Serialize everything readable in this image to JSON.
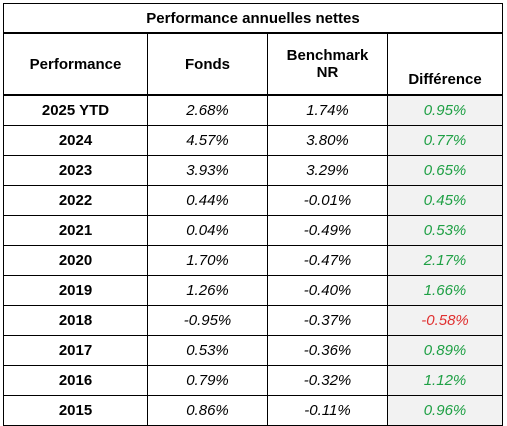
{
  "table": {
    "title": "Performance annuelles nettes",
    "headers": {
      "performance": "Performance",
      "fonds": "Fonds",
      "benchmark_line1": "Benchmark",
      "benchmark_line2": "NR",
      "difference": "Différence"
    },
    "colors": {
      "positive": "#1fa045",
      "negative": "#e03030",
      "difference_bg": "#f2f2f2"
    },
    "rows": [
      {
        "year": "2025 YTD",
        "fonds": "2.68%",
        "benchmark": "1.74%",
        "difference": "0.95%",
        "sign": "pos"
      },
      {
        "year": "2024",
        "fonds": "4.57%",
        "benchmark": "3.80%",
        "difference": "0.77%",
        "sign": "pos"
      },
      {
        "year": "2023",
        "fonds": "3.93%",
        "benchmark": "3.29%",
        "difference": "0.65%",
        "sign": "pos"
      },
      {
        "year": "2022",
        "fonds": "0.44%",
        "benchmark": "-0.01%",
        "difference": "0.45%",
        "sign": "pos"
      },
      {
        "year": "2021",
        "fonds": "0.04%",
        "benchmark": "-0.49%",
        "difference": "0.53%",
        "sign": "pos"
      },
      {
        "year": "2020",
        "fonds": "1.70%",
        "benchmark": "-0.47%",
        "difference": "2.17%",
        "sign": "pos"
      },
      {
        "year": "2019",
        "fonds": "1.26%",
        "benchmark": "-0.40%",
        "difference": "1.66%",
        "sign": "pos"
      },
      {
        "year": "2018",
        "fonds": "-0.95%",
        "benchmark": "-0.37%",
        "difference": "-0.58%",
        "sign": "neg"
      },
      {
        "year": "2017",
        "fonds": "0.53%",
        "benchmark": "-0.36%",
        "difference": "0.89%",
        "sign": "pos"
      },
      {
        "year": "2016",
        "fonds": "0.79%",
        "benchmark": "-0.32%",
        "difference": "1.12%",
        "sign": "pos"
      },
      {
        "year": "2015",
        "fonds": "0.86%",
        "benchmark": "-0.11%",
        "difference": "0.96%",
        "sign": "pos"
      }
    ]
  }
}
